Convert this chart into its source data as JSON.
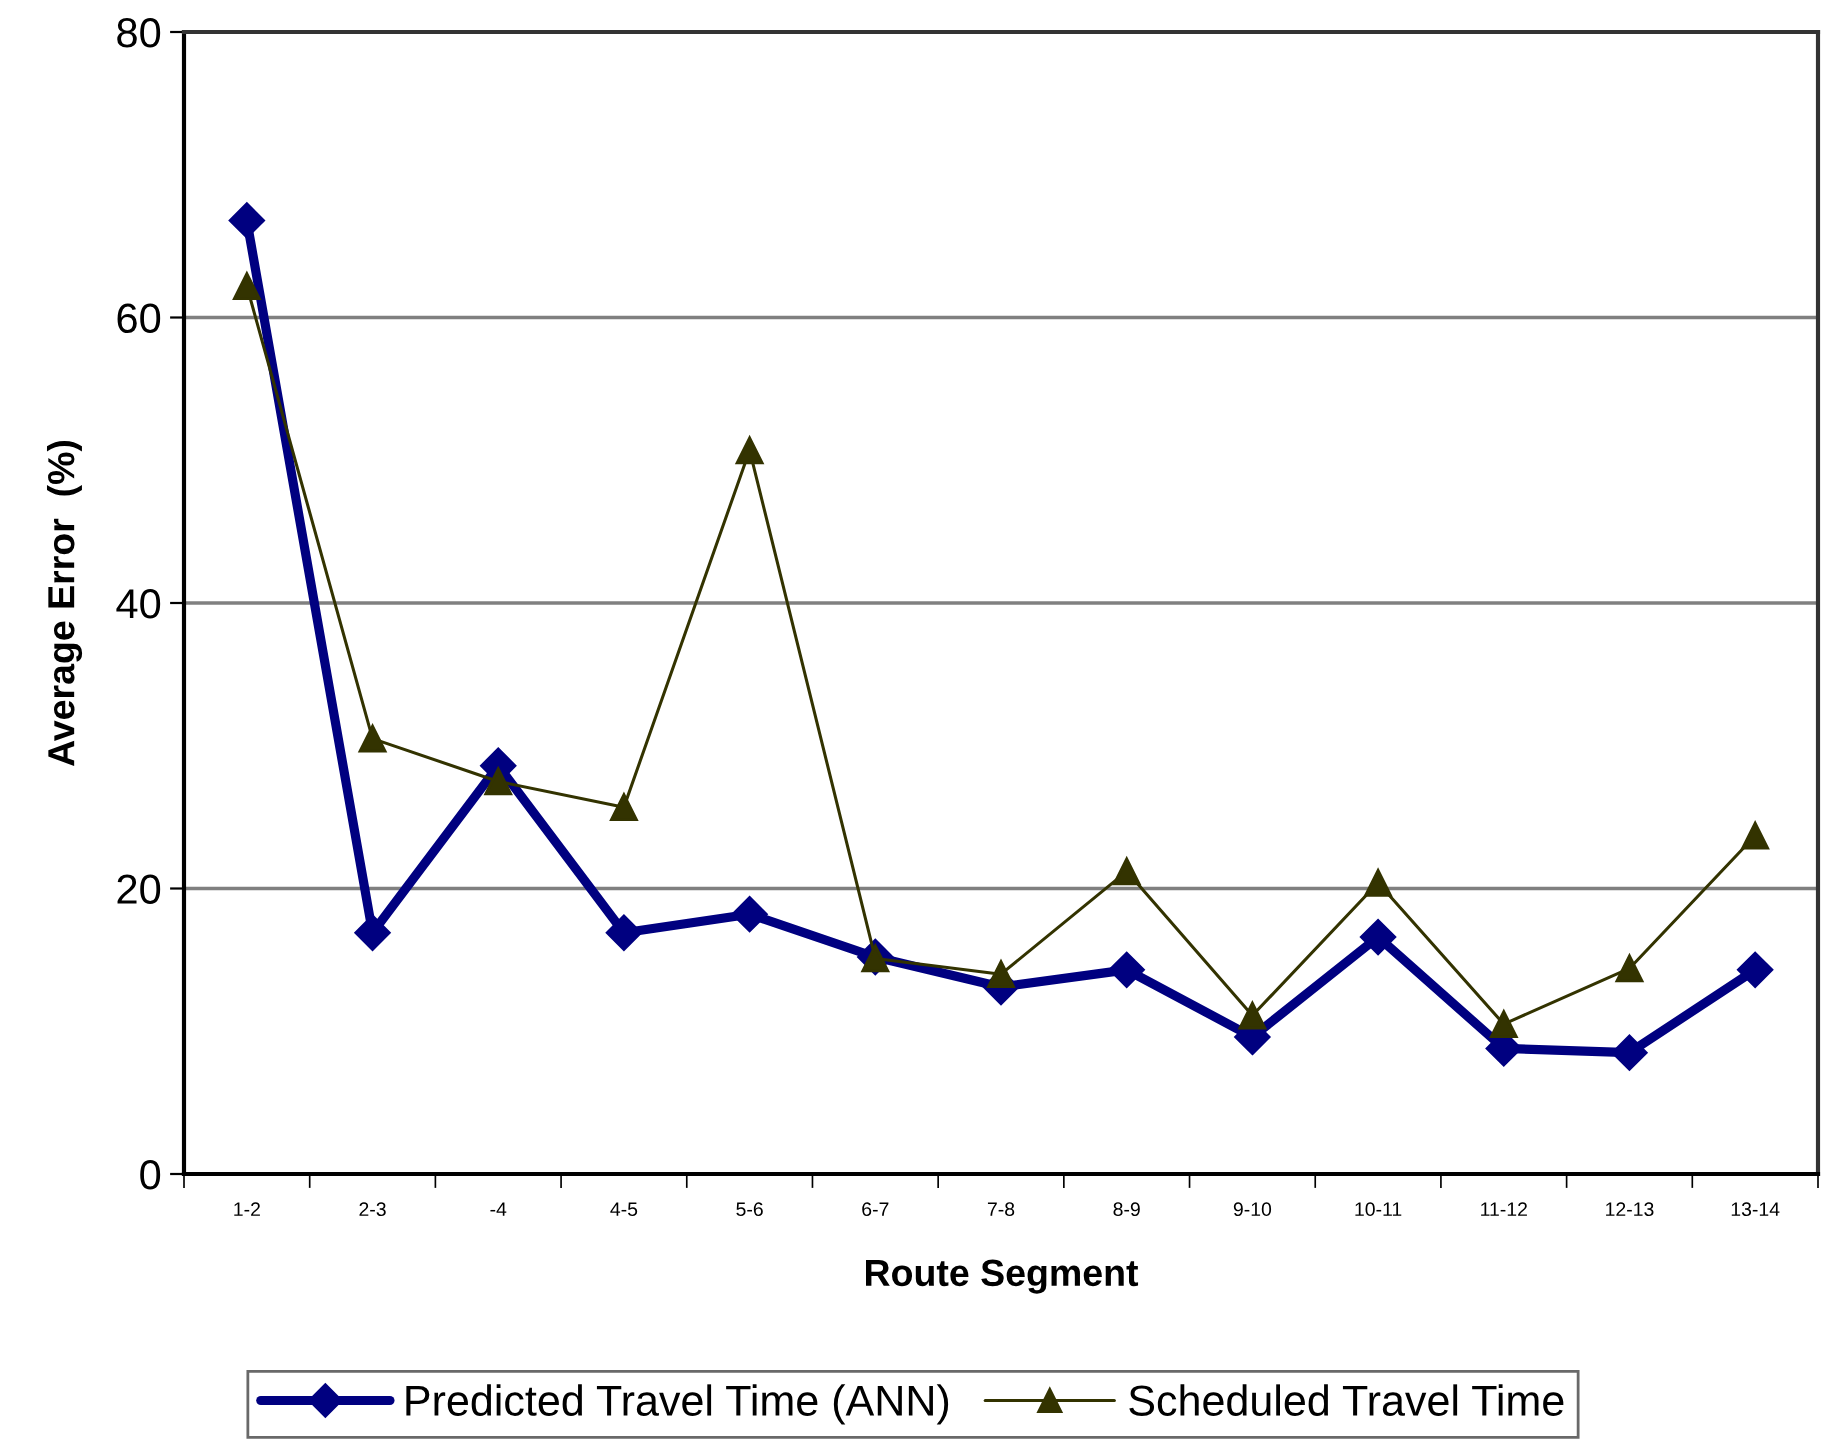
{
  "chart_data": {
    "type": "line",
    "xlabel": "Route Segment",
    "ylabel": "Average Error  (%)",
    "categories": [
      "1-2",
      "2-3",
      "-4",
      "4-5",
      "5-6",
      "6-7",
      "7-8",
      "8-9",
      "9-10",
      "10-11",
      "11-12",
      "12-13",
      "13-14"
    ],
    "series": [
      {
        "name": "Predicted Travel Time (ANN)",
        "color": "#000080",
        "marker": "diamond",
        "values": [
          66.8,
          16.9,
          28.6,
          16.9,
          18.2,
          15.2,
          13.1,
          14.3,
          9.6,
          16.6,
          8.8,
          8.5,
          14.3
        ]
      },
      {
        "name": "Scheduled Travel Time",
        "color": "#333300",
        "marker": "triangle",
        "values": [
          62.2,
          30.5,
          27.5,
          25.7,
          50.7,
          15.1,
          14.0,
          21.2,
          11.1,
          20.4,
          10.5,
          14.4,
          23.7
        ]
      }
    ],
    "ylim": [
      0,
      80
    ],
    "yticks": [
      0,
      20,
      40,
      60,
      80
    ],
    "grid": "y",
    "legend": "bottom",
    "line_style": "solid"
  }
}
